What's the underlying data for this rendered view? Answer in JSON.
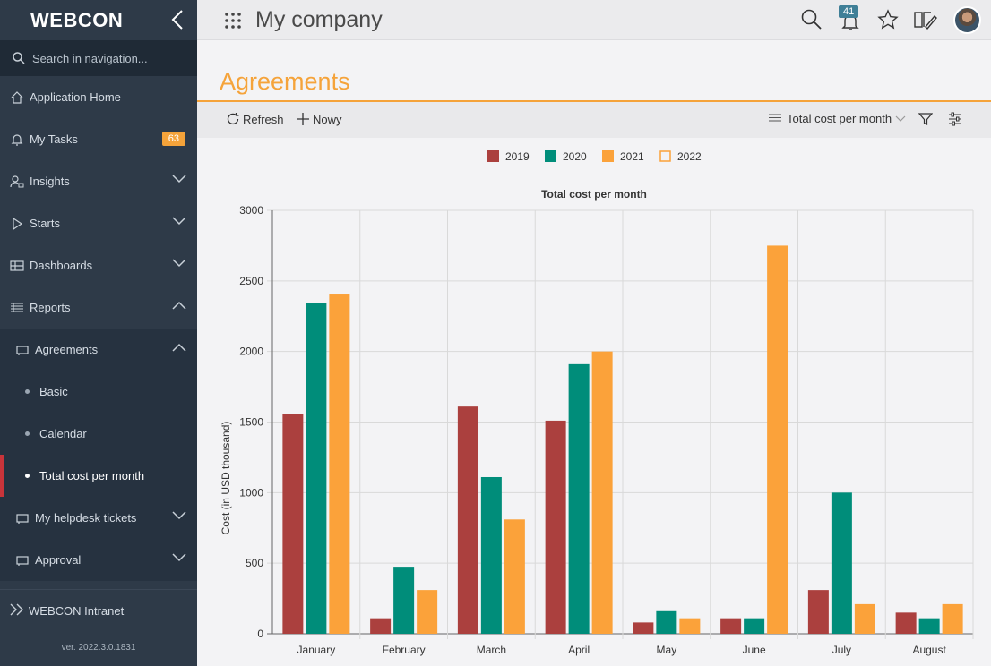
{
  "sidebar": {
    "logo": "WEBCON",
    "search_placeholder": "Search in navigation...",
    "items": [
      {
        "label": "Application Home"
      },
      {
        "label": "My Tasks",
        "badge": "63"
      },
      {
        "label": "Insights"
      },
      {
        "label": "Starts"
      },
      {
        "label": "Dashboards"
      },
      {
        "label": "Reports"
      },
      {
        "label": "Agreements"
      },
      {
        "label": "Basic"
      },
      {
        "label": "Calendar"
      },
      {
        "label": "Total cost per month"
      },
      {
        "label": "My helpdesk tickets"
      },
      {
        "label": "Approval"
      }
    ],
    "intranet": "WEBCON Intranet",
    "version": "ver. 2022.3.0.1831"
  },
  "header": {
    "company": "My company",
    "notifications": "41"
  },
  "page": {
    "title": "Agreements"
  },
  "toolbar": {
    "refresh": "Refresh",
    "new": "Nowy",
    "view": "Total cost per month"
  },
  "colors": {
    "accent": "#f5a33a",
    "sidebar_bg": "#2e3a48",
    "active_marker": "#c8343a"
  },
  "chart_data": {
    "type": "bar",
    "title": "Total cost per month",
    "ylabel": "Cost (in USD thousand)",
    "xlabel": "",
    "ylim": [
      0,
      3000
    ],
    "yticks": [
      0,
      500,
      1000,
      1500,
      2000,
      2500,
      3000
    ],
    "categories": [
      "January",
      "February",
      "March",
      "April",
      "May",
      "June",
      "July",
      "August"
    ],
    "legend_position": "top",
    "series": [
      {
        "name": "2019",
        "color": "#ab403e",
        "values": [
          1560,
          110,
          1610,
          1510,
          80,
          110,
          310,
          150
        ]
      },
      {
        "name": "2020",
        "color": "#008d7a",
        "values": [
          2345,
          475,
          1110,
          1910,
          160,
          110,
          1000,
          110
        ]
      },
      {
        "name": "2021",
        "color": "#fba23a",
        "values": [
          2410,
          310,
          810,
          2000,
          110,
          2750,
          210,
          210
        ]
      },
      {
        "name": "2022",
        "color": "#fba23a",
        "hollow": true,
        "values": [
          0,
          0,
          0,
          0,
          0,
          0,
          0,
          0
        ]
      }
    ]
  }
}
